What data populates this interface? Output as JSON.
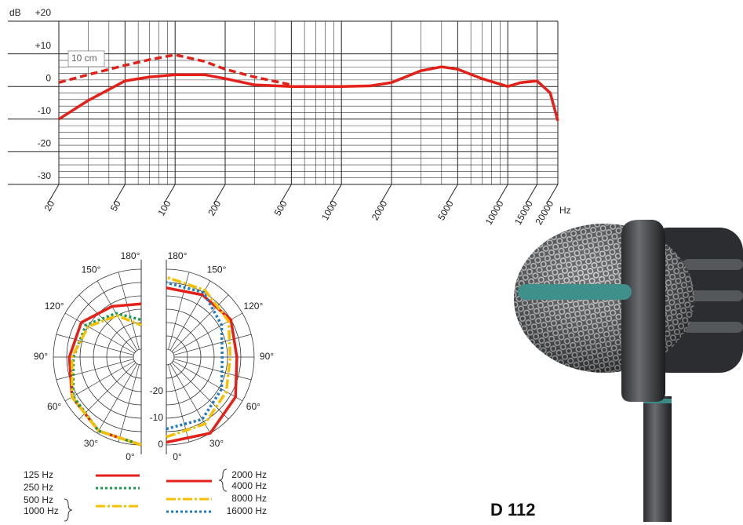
{
  "product": "D 112",
  "chart_data": [
    {
      "type": "line",
      "ylabel": "dB",
      "xlabel": "Hz",
      "xscale": "log",
      "xlim": [
        20,
        20000
      ],
      "ylim": [
        -30,
        20
      ],
      "xticks": [
        20,
        50,
        100,
        200,
        500,
        1000,
        2000,
        5000,
        10000,
        15000,
        20000
      ],
      "minor_xticks": [
        30,
        40,
        60,
        70,
        80,
        90,
        300,
        400,
        600,
        700,
        800,
        900,
        3000,
        4000,
        6000,
        7000,
        8000,
        9000
      ],
      "yticks": [
        {
          "value": 20,
          "label": "+20"
        },
        {
          "value": 10,
          "label": "+10"
        },
        0,
        -10,
        -20,
        -30
      ],
      "minor_yticks": [
        8,
        6,
        4,
        2,
        -2,
        -4,
        -6,
        -8,
        -12,
        -14,
        -16,
        -18,
        -22,
        -24,
        -26,
        -28
      ],
      "annotation": "10 cm",
      "x": [
        20,
        30,
        50,
        70,
        100,
        150,
        200,
        300,
        500,
        700,
        1000,
        1500,
        2000,
        3000,
        4000,
        5000,
        7000,
        10000,
        12000,
        15000,
        18000,
        20000
      ],
      "series": [
        {
          "color": "#e32119",
          "style": "solid",
          "values": [
            -10,
            -4.3,
            1.7,
            2.9,
            3.6,
            3.6,
            2.4,
            0.5,
            0,
            0,
            0,
            0.2,
            1.2,
            4.8,
            6,
            5.3,
            2.4,
            0,
            1.2,
            1.7,
            -2,
            -10.5
          ]
        },
        {
          "color": "#e32119",
          "style": "dashed",
          "values": [
            1.2,
            3.6,
            6.5,
            8.2,
            9.7,
            7.7,
            5.3,
            2.9,
            0.5,
            null,
            null,
            null,
            null,
            null,
            null,
            null,
            null,
            null,
            null,
            null,
            null,
            null
          ]
        }
      ]
    },
    {
      "type": "polar",
      "side": "left",
      "rlim": [
        -30,
        0
      ],
      "rings": [
        -25,
        -20,
        -15,
        -10,
        -5,
        0
      ],
      "angles": [
        0,
        30,
        60,
        90,
        120,
        150,
        180
      ],
      "angle_ticks": [
        {
          "value": 0,
          "label": "0°"
        },
        {
          "value": 30,
          "label": "30°"
        },
        {
          "value": 60,
          "label": "60°"
        },
        {
          "value": 90,
          "label": "90°"
        },
        {
          "value": 120,
          "label": "120°"
        },
        {
          "value": 150,
          "label": "150°"
        },
        {
          "value": 180,
          "label": "180°"
        }
      ],
      "series": [
        {
          "names": [
            "125 Hz"
          ],
          "color": "#e32119",
          "style": "solid",
          "values": [
            0,
            -1,
            -3,
            -6,
            -7,
            -11,
            -13
          ]
        },
        {
          "names": [
            "250 Hz"
          ],
          "color": "#1a9a4a",
          "style": "dotted",
          "values": [
            0,
            -1,
            -3.5,
            -7.5,
            -9,
            -14,
            -19
          ]
        },
        {
          "names": [
            "500 Hz",
            "1000 Hz"
          ],
          "color": "#f5c000",
          "style": "dashdot",
          "values": [
            0,
            -1,
            -3,
            -7,
            -10,
            -15,
            -21
          ]
        }
      ]
    },
    {
      "type": "polar",
      "side": "right",
      "rlim": [
        -30,
        0
      ],
      "rings": [
        -25,
        -20,
        -15,
        -10,
        -5,
        0
      ],
      "rticks": [
        -20,
        -10,
        0
      ],
      "angles": [
        0,
        30,
        60,
        90,
        120,
        150,
        180
      ],
      "angle_ticks": [
        {
          "value": 0,
          "label": "0°"
        },
        {
          "value": 30,
          "label": "30°"
        },
        {
          "value": 60,
          "label": "60°"
        },
        {
          "value": 90,
          "label": "90°"
        },
        {
          "value": 120,
          "label": "120°"
        },
        {
          "value": 150,
          "label": "150°"
        },
        {
          "value": 180,
          "label": "180°"
        }
      ],
      "series": [
        {
          "names": [
            "2000 Hz",
            "4000 Hz"
          ],
          "color": "#e32119",
          "style": "solid",
          "values": [
            -1,
            0,
            -3,
            -6.5,
            -5,
            -6,
            -7
          ]
        },
        {
          "names": [
            "8000 Hz"
          ],
          "color": "#f5c000",
          "style": "dashdot",
          "values": [
            -3,
            -4,
            -7,
            -9,
            -6,
            -4,
            -3
          ]
        },
        {
          "names": [
            "16000 Hz"
          ],
          "color": "#1f7ac0",
          "style": "dotted",
          "values": [
            -6,
            -6,
            -9,
            -12,
            -9,
            -5,
            -5
          ]
        }
      ]
    }
  ]
}
